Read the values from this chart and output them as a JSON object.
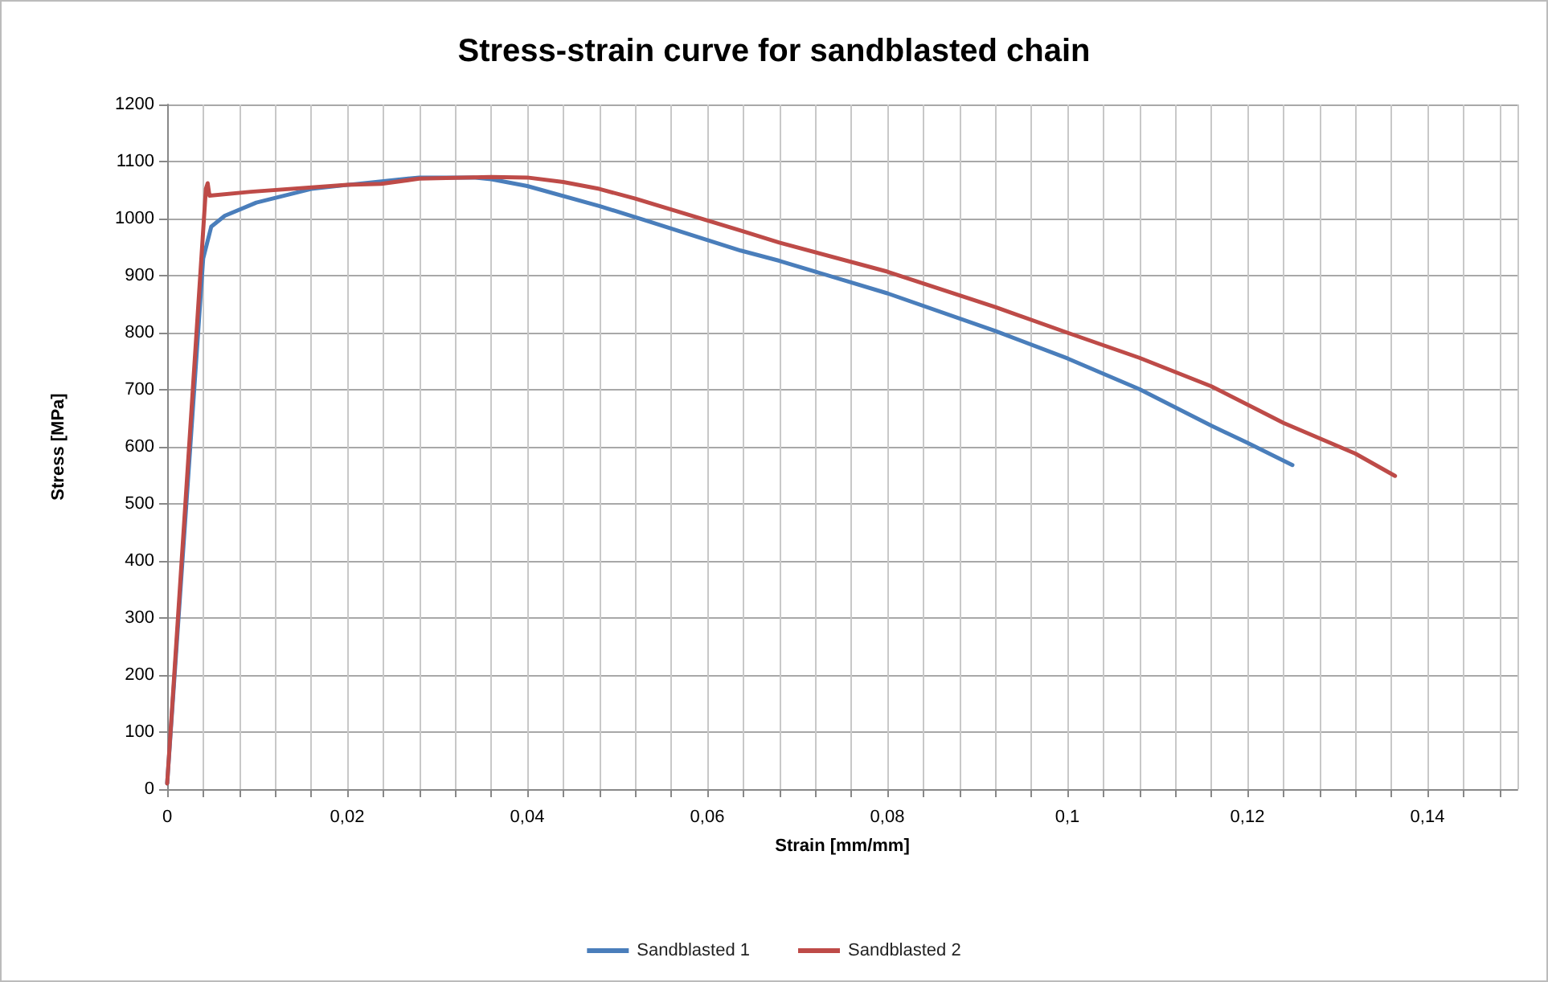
{
  "chart_data": {
    "type": "line",
    "title": "Stress-strain curve for sandblasted chain",
    "xlabel": "Strain [mm/mm]",
    "ylabel": "Stress [MPa]",
    "xlim": [
      0,
      0.15
    ],
    "ylim": [
      0,
      1200
    ],
    "xticks": [
      {
        "value": 0,
        "label": "0"
      },
      {
        "value": 0.004,
        "label": null
      },
      {
        "value": 0.008,
        "label": null
      },
      {
        "value": 0.012,
        "label": null
      },
      {
        "value": 0.016,
        "label": null
      },
      {
        "value": 0.02,
        "label": "0,02"
      },
      {
        "value": 0.024,
        "label": null
      },
      {
        "value": 0.028,
        "label": null
      },
      {
        "value": 0.032,
        "label": null
      },
      {
        "value": 0.036,
        "label": null
      },
      {
        "value": 0.04,
        "label": "0,04"
      },
      {
        "value": 0.044,
        "label": null
      },
      {
        "value": 0.048,
        "label": null
      },
      {
        "value": 0.052,
        "label": null
      },
      {
        "value": 0.056,
        "label": null
      },
      {
        "value": 0.06,
        "label": "0,06"
      },
      {
        "value": 0.064,
        "label": null
      },
      {
        "value": 0.068,
        "label": null
      },
      {
        "value": 0.072,
        "label": null
      },
      {
        "value": 0.076,
        "label": null
      },
      {
        "value": 0.08,
        "label": "0,08"
      },
      {
        "value": 0.084,
        "label": null
      },
      {
        "value": 0.088,
        "label": null
      },
      {
        "value": 0.092,
        "label": null
      },
      {
        "value": 0.096,
        "label": null
      },
      {
        "value": 0.1,
        "label": "0,1"
      },
      {
        "value": 0.104,
        "label": null
      },
      {
        "value": 0.108,
        "label": null
      },
      {
        "value": 0.112,
        "label": null
      },
      {
        "value": 0.116,
        "label": null
      },
      {
        "value": 0.12,
        "label": "0,12"
      },
      {
        "value": 0.124,
        "label": null
      },
      {
        "value": 0.128,
        "label": null
      },
      {
        "value": 0.132,
        "label": null
      },
      {
        "value": 0.136,
        "label": null
      },
      {
        "value": 0.14,
        "label": "0,14"
      },
      {
        "value": 0.144,
        "label": null
      },
      {
        "value": 0.148,
        "label": null
      }
    ],
    "yticks": [
      0,
      100,
      200,
      300,
      400,
      500,
      600,
      700,
      800,
      900,
      1000,
      1100,
      1200
    ],
    "grid": true,
    "legend": "bottom",
    "marker": "none",
    "line_style": "solid",
    "series": [
      {
        "name": "Sandblasted 1",
        "color": "#4a7ebb",
        "x": [
          0,
          0.004,
          0.0049,
          0.0064,
          0.0099,
          0.016,
          0.02,
          0.028,
          0.034,
          0.036,
          0.04,
          0.048,
          0.0531,
          0.0637,
          0.068,
          0.08,
          0.092,
          0.1,
          0.108,
          0.116,
          0.12,
          0.125
        ],
        "values": [
          10,
          930,
          986,
          1005,
          1028,
          1052,
          1059,
          1072,
          1072,
          1069,
          1057,
          1022,
          997,
          944,
          926,
          869,
          803,
          755,
          701,
          637,
          607,
          568
        ]
      },
      {
        "name": "Sandblasted 2",
        "color": "#be4b48",
        "x": [
          0,
          0.0043,
          0.0045,
          0.0047,
          0.0093,
          0.02,
          0.0238,
          0.028,
          0.036,
          0.04,
          0.044,
          0.048,
          0.052,
          0.0637,
          0.068,
          0.08,
          0.092,
          0.1,
          0.108,
          0.116,
          0.124,
          0.132,
          0.1364
        ],
        "values": [
          10,
          1052,
          1062,
          1040,
          1047,
          1059,
          1061,
          1070,
          1073,
          1072,
          1064,
          1052,
          1035,
          979,
          958,
          907,
          845,
          800,
          756,
          706,
          642,
          588,
          549
        ]
      }
    ]
  }
}
